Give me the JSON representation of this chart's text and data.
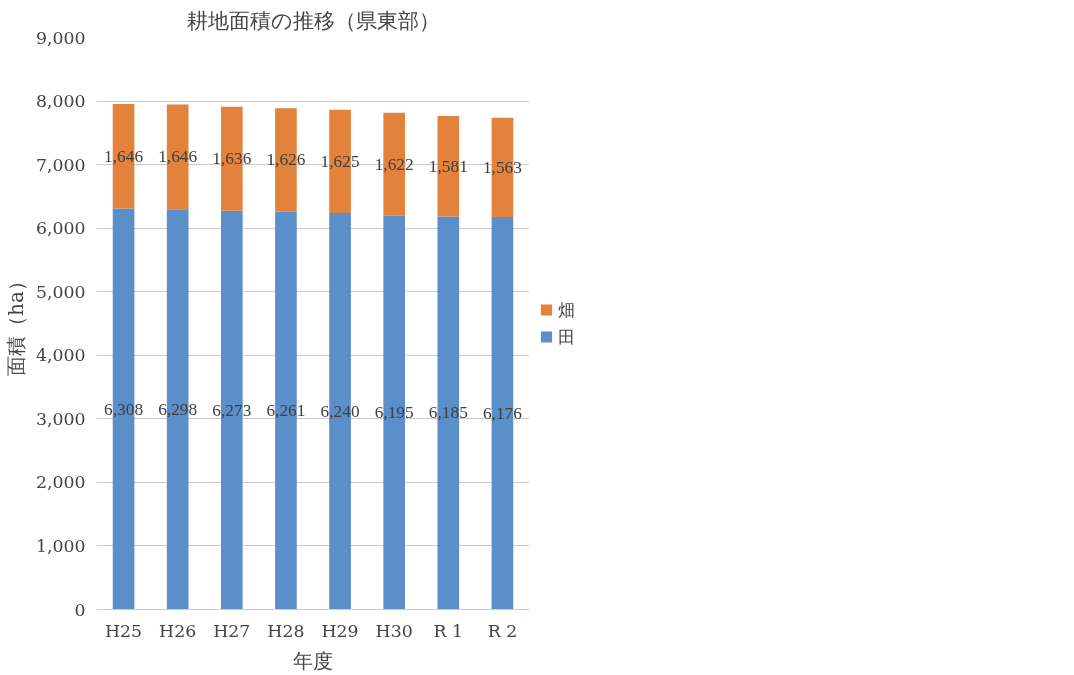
{
  "chart_data": {
    "type": "bar",
    "title": "耕地面積の推移（県東部）",
    "xlabel": "年度",
    "ylabel": "面積（ha）",
    "categories": [
      "H25",
      "H26",
      "H27",
      "H28",
      "H29",
      "H30",
      "R 1",
      "R 2"
    ],
    "stacked": true,
    "grid": "y",
    "legend": "right",
    "ylim": [
      0,
      9000
    ],
    "yticks": [
      {
        "value": 0,
        "label": "0"
      },
      {
        "value": 1000,
        "label": "1,000"
      },
      {
        "value": 2000,
        "label": "2,000"
      },
      {
        "value": 3000,
        "label": "3,000"
      },
      {
        "value": 4000,
        "label": "4,000"
      },
      {
        "value": 5000,
        "label": "5,000"
      },
      {
        "value": 6000,
        "label": "6,000"
      },
      {
        "value": 7000,
        "label": "7,000"
      },
      {
        "value": 8000,
        "label": "8,000"
      },
      {
        "value": 9000,
        "label": "9,000"
      }
    ],
    "series": [
      {
        "name": "田",
        "color": "#5b8fc9",
        "values": [
          6308,
          6298,
          6273,
          6261,
          6240,
          6195,
          6185,
          6176
        ],
        "value_labels": [
          "6,308",
          "6,298",
          "6,273",
          "6,261",
          "6,240",
          "6,195",
          "6,185",
          "6,176"
        ]
      },
      {
        "name": "畑",
        "color": "#e2823c",
        "values": [
          1646,
          1646,
          1636,
          1626,
          1625,
          1622,
          1581,
          1563
        ],
        "value_labels": [
          "1,646",
          "1,646",
          "1,636",
          "1,626",
          "1,625",
          "1,622",
          "1,581",
          "1,563"
        ]
      }
    ]
  }
}
